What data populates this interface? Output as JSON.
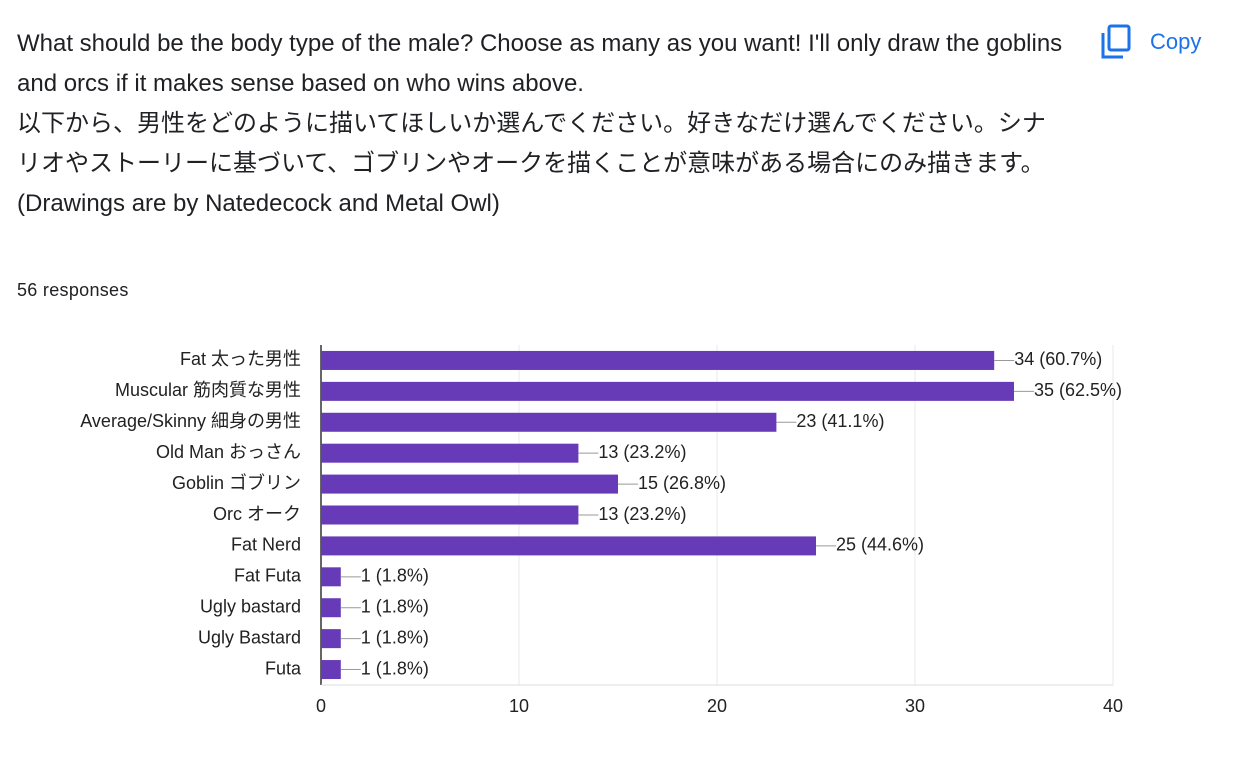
{
  "question": [
    "What should be the body type of the male? Choose as many as you want! I'll only draw the goblins and orcs if it makes sense based on who wins above.",
    "以下から、男性をどのように描いてほしいか選んでください。好きなだけ選んでください。シナリオやストーリーに基づいて、ゴブリンやオークを描くことが意味がある場合にのみ描きます。",
    "(Drawings are by Natedecock and Metal Owl)"
  ],
  "response_count": "56 responses",
  "copy_button": "Copy",
  "chart_data": {
    "type": "bar",
    "orientation": "horizontal",
    "categories": [
      "Fat 太った男性",
      "Muscular 筋肉質な男性",
      "Average/Skinny 細身の男性",
      "Old Man おっさん",
      "Goblin ゴブリン",
      "Orc オーク",
      "Fat Nerd",
      "Fat Futa",
      "Ugly bastard",
      "Ugly Bastard",
      "Futa"
    ],
    "values": [
      34,
      35,
      23,
      13,
      15,
      13,
      25,
      1,
      1,
      1,
      1
    ],
    "value_labels": [
      "34 (60.7%)",
      "35 (62.5%)",
      "23 (41.1%)",
      "13 (23.2%)",
      "15 (26.8%)",
      "13 (23.2%)",
      "25 (44.6%)",
      "1 (1.8%)",
      "1 (1.8%)",
      "1 (1.8%)",
      "1 (1.8%)"
    ],
    "color": "#673ab7",
    "xlim": [
      0,
      40
    ],
    "xticks": [
      0,
      10,
      20,
      30,
      40
    ],
    "grid": true
  }
}
